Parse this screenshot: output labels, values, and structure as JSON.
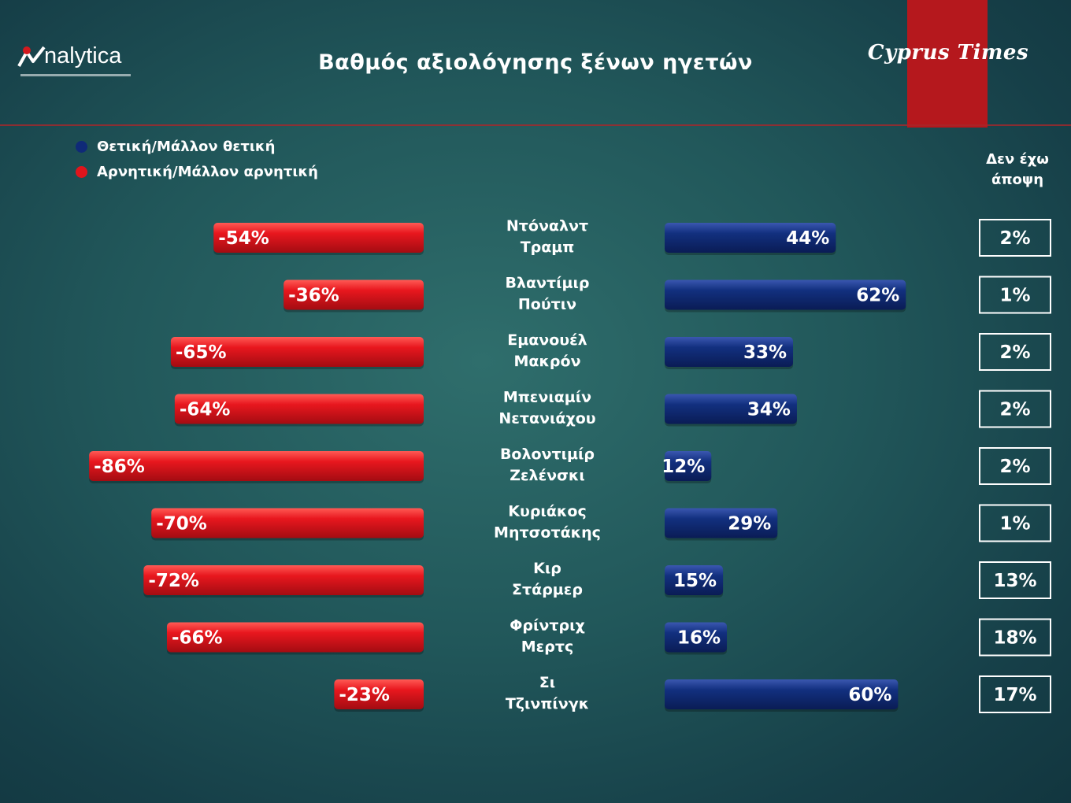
{
  "header": {
    "logo_text": "nalytica",
    "title": "Βαθμός αξιολόγησης ξένων ηγετών",
    "brand": "Cyprus Times"
  },
  "legend": {
    "positive": "Θετική/Μάλλον θετική",
    "negative": "Αρνητική/Μάλλον αρνητική"
  },
  "colors": {
    "positive": "#0f2a78",
    "negative": "#e0151c",
    "accent": "#b5181d"
  },
  "no_opinion_header": [
    "Δεν έχω",
    "άποψη"
  ],
  "chart_data": {
    "type": "bar",
    "orientation": "horizontal-diverging",
    "categories": [
      [
        "Ντόναλντ",
        "Τραμπ"
      ],
      [
        "Βλαντίμιρ",
        "Πούτιν"
      ],
      [
        "Εμανουέλ",
        "Μακρόν"
      ],
      [
        "Μπενιαμίν",
        "Νετανιάχου"
      ],
      [
        "Βολοντιμίρ",
        "Ζελένσκι"
      ],
      [
        "Κυριάκος",
        "Μητσοτάκης"
      ],
      [
        "Κιρ",
        "Στάρμερ"
      ],
      [
        "Φρίντριχ",
        "Μερτς"
      ],
      [
        "Σι",
        "Τζινπίνγκ"
      ]
    ],
    "series": [
      {
        "name": "Αρνητική/Μάλλον αρνητική",
        "values": [
          -54,
          -36,
          -65,
          -64,
          -86,
          -70,
          -72,
          -66,
          -23
        ],
        "labels": [
          "-54%",
          "-36%",
          "-65%",
          "-64%",
          "-86%",
          "-70%",
          "-72%",
          "-66%",
          "-23%"
        ]
      },
      {
        "name": "Θετική/Μάλλον θετική",
        "values": [
          44,
          62,
          33,
          34,
          12,
          29,
          15,
          16,
          60
        ],
        "labels": [
          "44%",
          "62%",
          "33%",
          "34%",
          "12%",
          "29%",
          "15%",
          "16%",
          "60%"
        ]
      },
      {
        "name": "Δεν έχω άποψη",
        "values": [
          2,
          1,
          2,
          2,
          2,
          1,
          13,
          18,
          17
        ],
        "labels": [
          "2%",
          "1%",
          "2%",
          "2%",
          "2%",
          "1%",
          "13%",
          "18%",
          "17%"
        ]
      }
    ]
  }
}
